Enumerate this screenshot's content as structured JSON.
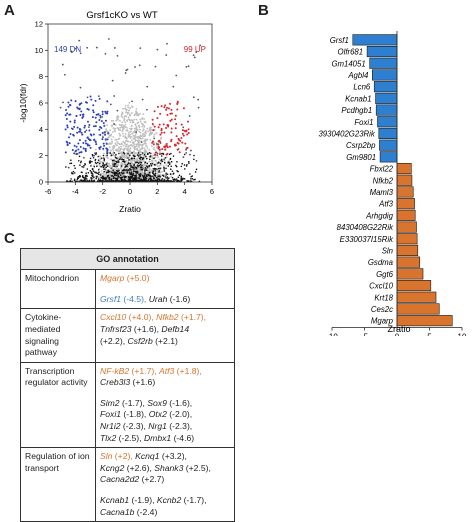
{
  "panels": {
    "a": "A",
    "b": "B",
    "c": "C"
  },
  "colors": {
    "up": "#d9262c",
    "down": "#2b3fbf",
    "bar_pos": "#d9742f",
    "bar_neg": "#2f7fd0",
    "orange_text": "#d8742c",
    "blue_text": "#3a7cc4"
  },
  "volcano": {
    "type": "scatter",
    "title": "Grsf1cKO vs WT",
    "xlabel": "Zratio",
    "ylabel": "-log10(fdr)",
    "dn_label": "149 DN",
    "up_label": "99 UP",
    "xlim": [
      -6,
      6
    ],
    "ylim": [
      0,
      12
    ],
    "xticks": [
      "-6",
      "-4",
      "-2",
      "0",
      "2",
      "4",
      "6"
    ],
    "yticks": [
      "0",
      "2",
      "4",
      "6",
      "8",
      "10",
      "12"
    ]
  },
  "chart_data": {
    "type": "bar",
    "orientation": "horizontal",
    "xlabel": "Zratio",
    "xlim": [
      -10,
      10
    ],
    "xticks": [
      "-10",
      "-5",
      "0",
      "5",
      "10"
    ],
    "categories": [
      "Grsf1",
      "Olfr681",
      "Gm14051",
      "Agbl4",
      "Lcn6",
      "Kcnab1",
      "Pcdhgb1",
      "Foxi1",
      "3930402G23Rik",
      "Csrp2bp",
      "Gm9801",
      "Fbxl22",
      "Nfkb2",
      "Maml3",
      "Atf3",
      "Arhgdig",
      "8430408G22Rik",
      "E330037I15Rik",
      "Sln",
      "Gsdma",
      "Ggt6",
      "Cxcl10",
      "Krt18",
      "Ces2c",
      "Mgarp"
    ],
    "values": [
      -6.8,
      -4.6,
      -4.2,
      -3.8,
      -3.5,
      -3.3,
      -3.2,
      -3.0,
      -2.8,
      -2.7,
      -2.6,
      2.2,
      2.3,
      2.5,
      2.7,
      2.8,
      3.0,
      3.1,
      3.2,
      3.5,
      4.0,
      5.2,
      6.0,
      6.5,
      8.5
    ]
  },
  "go_table": {
    "header": "GO annotation",
    "rows": [
      {
        "category": "Mitochondrion",
        "lines": [
          [
            {
              "t": "Mgarp",
              "c": "orange",
              "i": true
            },
            {
              "t": " (+5.0)",
              "c": "orange",
              "i": false
            }
          ],
          [],
          [
            {
              "t": "Grsf1",
              "c": "blue",
              "i": true
            },
            {
              "t": " (-4.5), ",
              "c": "blue",
              "i": false
            },
            {
              "t": "Urah",
              "c": "blk",
              "i": true
            },
            {
              "t": " (-1.6)",
              "c": "blk",
              "i": false
            }
          ]
        ]
      },
      {
        "category": "Cytokine-mediated signaling pathway",
        "lines": [
          [
            {
              "t": "Cxcl10",
              "c": "orange",
              "i": true
            },
            {
              "t": " (+4.0), ",
              "c": "orange",
              "i": false
            },
            {
              "t": "Nfkb2",
              "c": "orange",
              "i": true
            },
            {
              "t": " (+1.7),",
              "c": "orange",
              "i": false
            }
          ],
          [
            {
              "t": "Tnfrsf23",
              "c": "blk",
              "i": true
            },
            {
              "t": " (+1.6), ",
              "c": "blk",
              "i": false
            },
            {
              "t": "Defb14",
              "c": "blk",
              "i": true
            }
          ],
          [
            {
              "t": "(+2.2), ",
              "c": "blk",
              "i": false
            },
            {
              "t": "Csf2rb",
              "c": "blk",
              "i": true
            },
            {
              "t": " (+2.1)",
              "c": "blk",
              "i": false
            }
          ]
        ]
      },
      {
        "category": "Transcription regulator activity",
        "lines": [
          [
            {
              "t": "NF-kB2",
              "c": "orange",
              "i": true
            },
            {
              "t": " (+1.7), ",
              "c": "orange",
              "i": false
            },
            {
              "t": "Atf3",
              "c": "orange",
              "i": true
            },
            {
              "t": " (+1.8),",
              "c": "orange",
              "i": false
            }
          ],
          [
            {
              "t": "Creb3l3",
              "c": "blk",
              "i": true
            },
            {
              "t": " (+1.6)",
              "c": "blk",
              "i": false
            }
          ],
          [],
          [
            {
              "t": "Sim2",
              "c": "blk",
              "i": true
            },
            {
              "t": " (-1.7), ",
              "c": "blk",
              "i": false
            },
            {
              "t": "Sox9",
              "c": "blk",
              "i": true
            },
            {
              "t": " (-1.6),",
              "c": "blk",
              "i": false
            }
          ],
          [
            {
              "t": "Foxi1",
              "c": "blk",
              "i": true
            },
            {
              "t": " (-1.8), ",
              "c": "blk",
              "i": false
            },
            {
              "t": "Otx2",
              "c": "blk",
              "i": true
            },
            {
              "t": " (-2.0),",
              "c": "blk",
              "i": false
            }
          ],
          [
            {
              "t": "Nr1i2",
              "c": "blk",
              "i": true
            },
            {
              "t": " (-2.3), ",
              "c": "blk",
              "i": false
            },
            {
              "t": "Nrg1",
              "c": "blk",
              "i": true
            },
            {
              "t": " (-2.3),",
              "c": "blk",
              "i": false
            }
          ],
          [
            {
              "t": "Tlx2",
              "c": "blk",
              "i": true
            },
            {
              "t": " (-2.5), ",
              "c": "blk",
              "i": false
            },
            {
              "t": "Dmbx1",
              "c": "blk",
              "i": true
            },
            {
              "t": " (-4.6)",
              "c": "blk",
              "i": false
            }
          ]
        ]
      },
      {
        "category": "Regulation of ion transport",
        "lines": [
          [
            {
              "t": "Sln",
              "c": "orange",
              "i": true
            },
            {
              "t": " (+2), ",
              "c": "orange",
              "i": false
            },
            {
              "t": "Kcnq1",
              "c": "blk",
              "i": true
            },
            {
              "t": " (+3.2),",
              "c": "blk",
              "i": false
            }
          ],
          [
            {
              "t": "Kcng2",
              "c": "blk",
              "i": true
            },
            {
              "t": " (+2.6), ",
              "c": "blk",
              "i": false
            },
            {
              "t": "Shank3",
              "c": "blk",
              "i": true
            },
            {
              "t": " (+2.5),",
              "c": "blk",
              "i": false
            }
          ],
          [
            {
              "t": "Cacna2d2",
              "c": "blk",
              "i": true
            },
            {
              "t": " (+2.7)",
              "c": "blk",
              "i": false
            }
          ],
          [],
          [
            {
              "t": "Kcnab1",
              "c": "blk",
              "i": true
            },
            {
              "t": " (-1.9), ",
              "c": "blk",
              "i": false
            },
            {
              "t": "Kcnb2",
              "c": "blk",
              "i": true
            },
            {
              "t": " (-1.7),",
              "c": "blk",
              "i": false
            }
          ],
          [
            {
              "t": "Cacna1b",
              "c": "blk",
              "i": true
            },
            {
              "t": " (-2.4)",
              "c": "blk",
              "i": false
            }
          ]
        ]
      }
    ]
  }
}
